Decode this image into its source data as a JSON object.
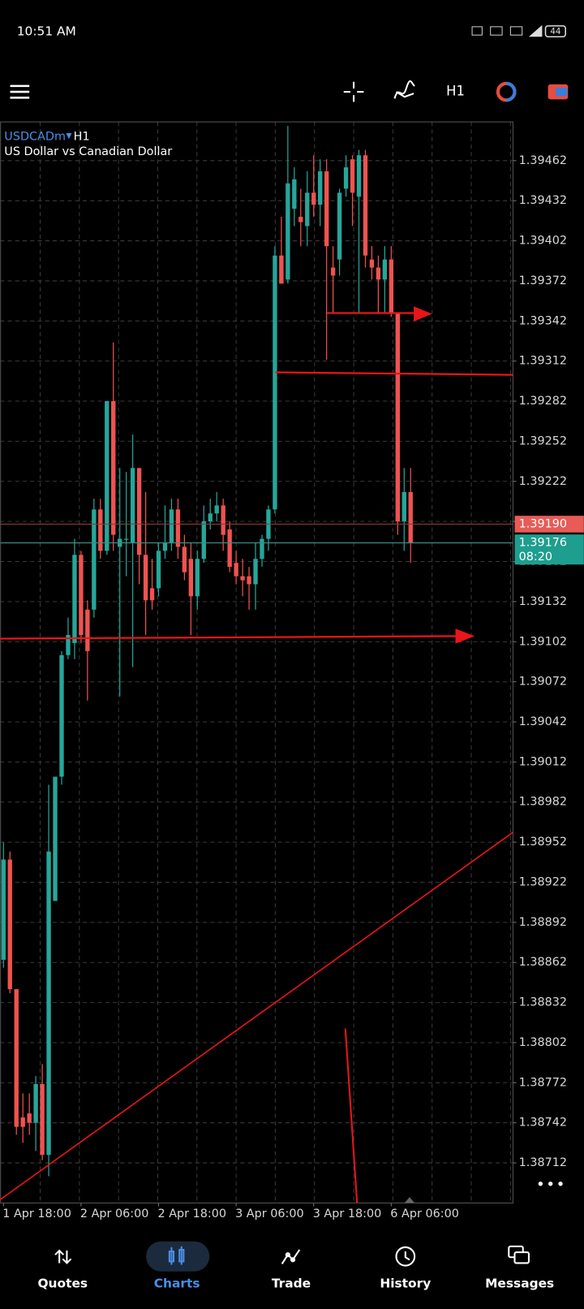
{
  "status_bar": {
    "time": "10:51 AM",
    "battery": "44"
  },
  "toolbar": {
    "timeframe": "H1"
  },
  "chart_data": {
    "type": "candlestick",
    "symbol": "USDCADm",
    "timeframe": "H1",
    "description": "US Dollar vs Canadian Dollar",
    "up_color": "#26a69a",
    "down_color": "#ef5350",
    "open": [
      1.38864,
      1.38939,
      1.38842,
      1.38746,
      1.38749,
      1.38742,
      1.38771,
      1.38718,
      1.38908,
      1.39001,
      1.39092,
      1.39101,
      1.39167,
      1.39126,
      1.39126,
      1.39201,
      1.3917,
      1.39282,
      1.39173,
      1.39179,
      1.39176,
      1.39232,
      1.39167,
      1.39142,
      1.39142,
      1.3917,
      1.39176,
      1.39201,
      1.39173,
      1.39164,
      1.39136,
      1.39164,
      1.39192,
      1.39198,
      1.39204,
      1.39186,
      1.39161,
      1.39151,
      1.39151,
      1.39145,
      1.39164,
      1.39179,
      1.39201,
      1.39391,
      1.39373,
      1.39426,
      1.3942,
      1.39413,
      1.39438,
      1.39429,
      1.39454,
      1.39382,
      1.39388,
      1.39441,
      1.39463,
      1.39435,
      1.39466,
      1.39388,
      1.39382,
      1.39373,
      1.39388,
      1.39348,
      1.39192,
      1.39214
    ],
    "high": [
      1.38952,
      1.38945,
      1.38842,
      1.38764,
      1.38764,
      1.38777,
      1.38786,
      1.38995,
      1.39001,
      1.39095,
      1.3912,
      1.39179,
      1.3917,
      1.39133,
      1.39209,
      1.39209,
      1.39282,
      1.39326,
      1.39232,
      1.39229,
      1.39257,
      1.39232,
      1.39214,
      1.39164,
      1.39176,
      1.39204,
      1.39209,
      1.39209,
      1.39182,
      1.39176,
      1.3917,
      1.39204,
      1.39209,
      1.39214,
      1.39209,
      1.39192,
      1.3917,
      1.39164,
      1.39158,
      1.39176,
      1.39182,
      1.39204,
      1.39398,
      1.3942,
      1.39488,
      1.39457,
      1.39441,
      1.39454,
      1.39466,
      1.39463,
      1.39463,
      1.39398,
      1.39441,
      1.39466,
      1.39466,
      1.3947,
      1.3947,
      1.39398,
      1.39391,
      1.39398,
      1.39398,
      1.39348,
      1.39232,
      1.39232
    ],
    "low": [
      1.38858,
      1.38839,
      1.38733,
      1.38727,
      1.38733,
      1.38721,
      1.38714,
      1.38702,
      1.38908,
      1.38995,
      1.39089,
      1.39089,
      1.39101,
      1.39058,
      1.3912,
      1.39164,
      1.39167,
      1.3917,
      1.39061,
      1.39151,
      1.39083,
      1.39145,
      1.39107,
      1.39126,
      1.39136,
      1.39164,
      1.3917,
      1.39164,
      1.39148,
      1.39107,
      1.39126,
      1.39161,
      1.39186,
      1.39192,
      1.3917,
      1.39154,
      1.39145,
      1.39136,
      1.39126,
      1.39126,
      1.39158,
      1.3917,
      1.39198,
      1.3937,
      1.3937,
      1.39413,
      1.39398,
      1.39398,
      1.3942,
      1.39413,
      1.39313,
      1.39348,
      1.39376,
      1.39435,
      1.39413,
      1.39348,
      1.39382,
      1.39373,
      1.39348,
      1.39348,
      1.39345,
      1.39182,
      1.3917,
      1.39161
    ],
    "close": [
      1.38939,
      1.38842,
      1.38739,
      1.38739,
      1.38742,
      1.38771,
      1.38718,
      1.38945,
      1.39001,
      1.39092,
      1.39107,
      1.39167,
      1.39107,
      1.39095,
      1.39201,
      1.3917,
      1.39282,
      1.39182,
      1.39179,
      1.39179,
      1.39232,
      1.39167,
      1.39133,
      1.39133,
      1.3917,
      1.39176,
      1.39201,
      1.39173,
      1.39154,
      1.39136,
      1.39164,
      1.39192,
      1.39198,
      1.39204,
      1.39182,
      1.39158,
      1.39151,
      1.39148,
      1.39145,
      1.39164,
      1.39179,
      1.39201,
      1.39391,
      1.3937,
      1.39445,
      1.39448,
      1.39416,
      1.39438,
      1.39429,
      1.39454,
      1.39398,
      1.39376,
      1.39438,
      1.39457,
      1.39438,
      1.39466,
      1.39391,
      1.39382,
      1.39373,
      1.39388,
      1.39348,
      1.39192,
      1.39214,
      1.39176
    ],
    "xticks": [
      {
        "value": 0,
        "label": "1 Apr 18:00"
      },
      {
        "value": 12,
        "label": "2 Apr 06:00"
      },
      {
        "value": 24,
        "label": "2 Apr 18:00"
      },
      {
        "value": 36,
        "label": "3 Apr 06:00"
      },
      {
        "value": 48,
        "label": "3 Apr 18:00"
      },
      {
        "value": 60,
        "label": "6 Apr 06:00"
      }
    ],
    "ylim": [
      1.38682,
      1.39491
    ],
    "yticks": [
      1.39462,
      1.39432,
      1.39402,
      1.39372,
      1.39342,
      1.39312,
      1.39282,
      1.39252,
      1.39222,
      1.39192,
      1.39162,
      1.39132,
      1.39102,
      1.39072,
      1.39042,
      1.39012,
      1.38982,
      1.38952,
      1.38922,
      1.38892,
      1.38862,
      1.38832,
      1.38802,
      1.38772,
      1.38742,
      1.38712
    ],
    "grid": true,
    "bid": {
      "value": 1.3919,
      "label": "1.39190"
    },
    "last": 1.39176,
    "countdown": "08:20"
  },
  "nav": {
    "items": [
      "Quotes",
      "Charts",
      "Trade",
      "History",
      "Messages"
    ]
  }
}
